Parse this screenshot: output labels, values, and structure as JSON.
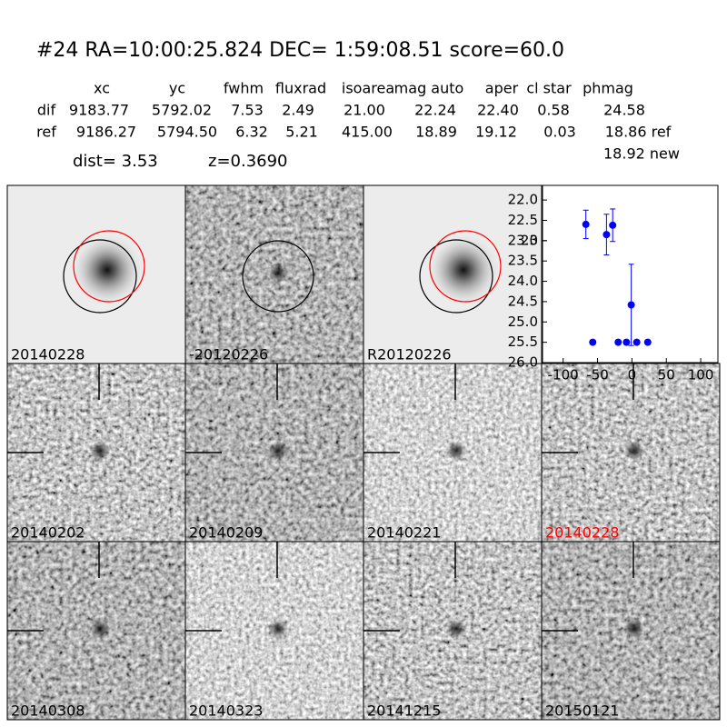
{
  "header": {
    "title": "#24   RA=10:00:25.824 DEC= 1:59:08.51      score=60.0"
  },
  "table": {
    "columns": [
      "xc",
      "yc",
      "fwhm",
      "fluxrad",
      "isoarea",
      "mag auto",
      "aper",
      "cl star",
      "phmag"
    ],
    "rows": [
      [
        "dif",
        "9183.77",
        "5792.02",
        "7.53",
        "2.49",
        "21.00",
        "22.24",
        "22.40",
        "0.58",
        "24.58"
      ],
      [
        "ref",
        "9186.27",
        "5794.50",
        "6.32",
        "5.21",
        "415.00",
        "18.89",
        "19.12",
        "0.03",
        "18.86 ref"
      ]
    ]
  },
  "dist": "dist=  3.53",
  "z": "z=0.3690",
  "phmag_new": "18.92 new",
  "stamps": [
    "20140228",
    "-20120226",
    "R20120226",
    "20140202",
    "20140209",
    "20140221",
    "20140228",
    "20140308",
    "20140323",
    "20141215",
    "20150121"
  ],
  "chart_data": {
    "type": "scatter",
    "color": "#0000ff",
    "x": [
      -67,
      -57,
      -37,
      -28,
      -20,
      -8,
      -1,
      7,
      23
    ],
    "values": [
      22.6,
      25.5,
      22.85,
      22.62,
      25.5,
      25.5,
      24.58,
      25.5,
      25.5
    ],
    "errors": [
      0.35,
      0.05,
      0.5,
      0.4,
      0.05,
      0.05,
      1.0,
      0.05,
      0.05
    ],
    "xlim": [
      -130,
      125
    ],
    "ylim": [
      26.0,
      21.64
    ],
    "xticks": [
      -100,
      -50,
      0,
      50,
      100
    ],
    "yticks": [
      {
        "value": 22,
        "label": "22.0"
      },
      22.5,
      23,
      {
        "value": 23,
        "label": "23.0"
      },
      23.5,
      {
        "value": 24,
        "label": "24.0"
      },
      24.5,
      {
        "value": 25,
        "label": "25.0"
      },
      25.5,
      {
        "value": 26,
        "label": "26.0"
      }
    ]
  }
}
